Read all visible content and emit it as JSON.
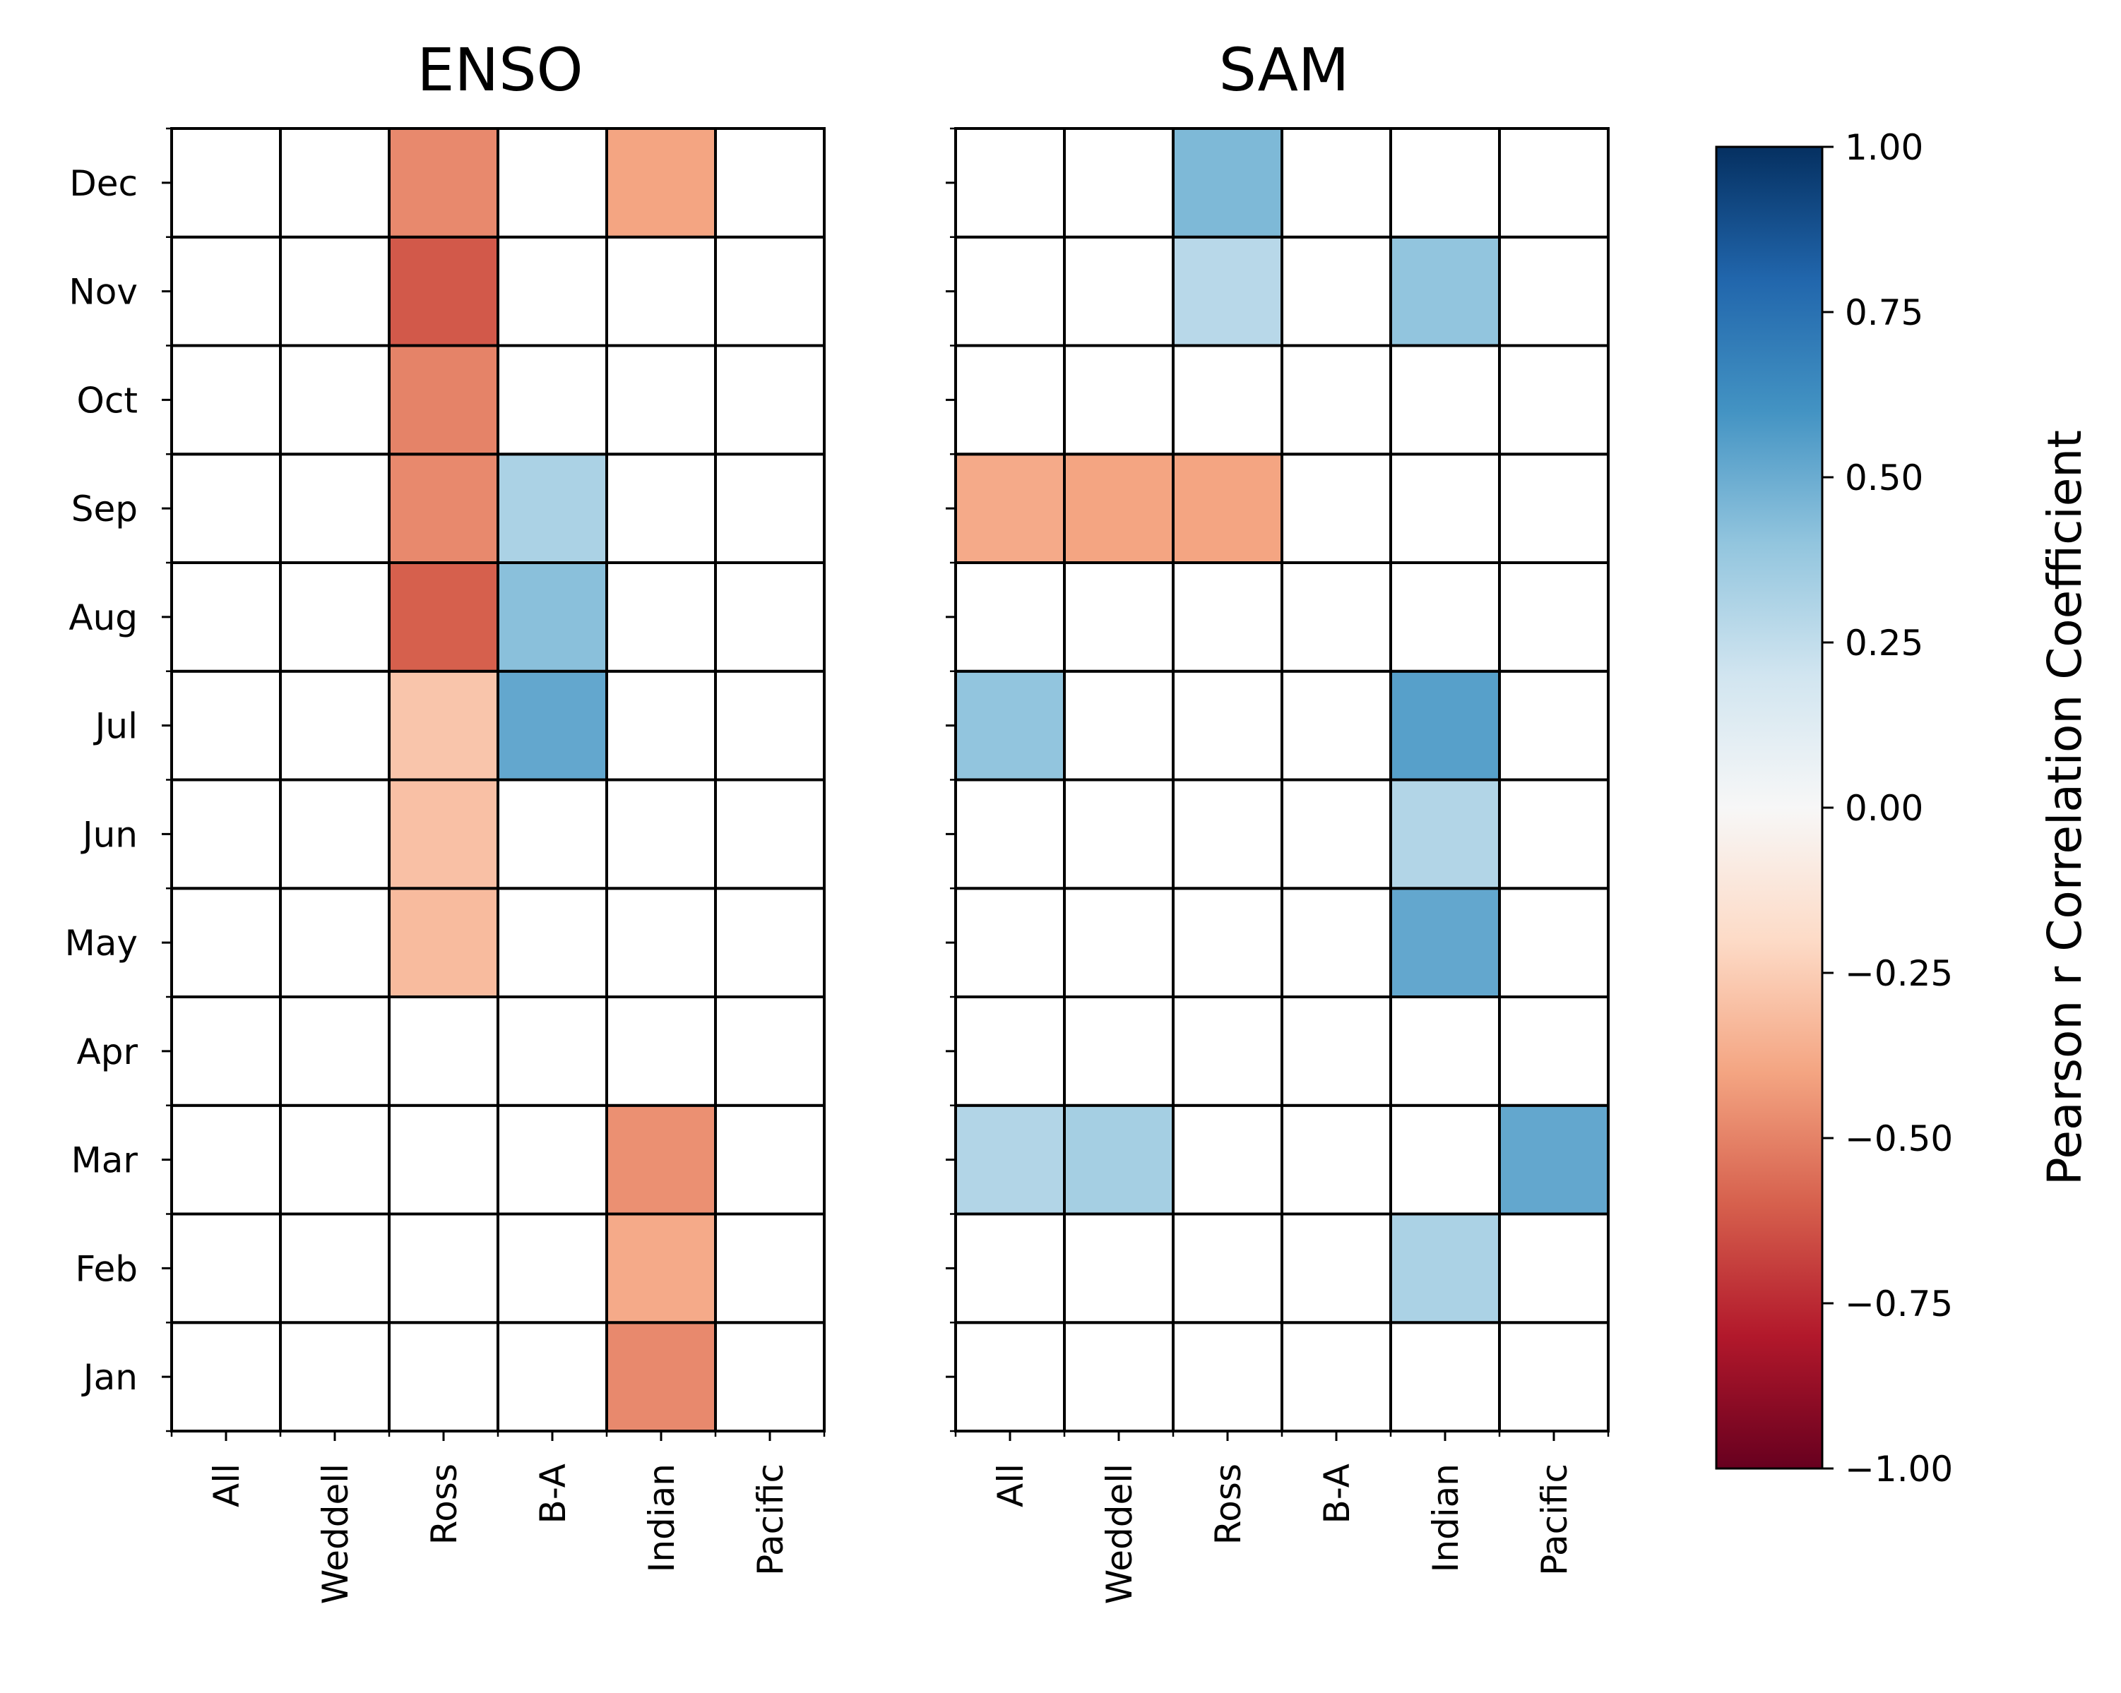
{
  "chart_data": [
    {
      "type": "heatmap",
      "title": "ENSO",
      "x_categories": [
        "All",
        "Weddell",
        "Ross",
        "B-A",
        "Indian",
        "Pacific"
      ],
      "y_categories": [
        "Jan",
        "Feb",
        "Mar",
        "Apr",
        "May",
        "Jun",
        "Jul",
        "Aug",
        "Sep",
        "Oct",
        "Nov",
        "Dec"
      ],
      "y_order": "bottom-to-top",
      "values": [
        [
          null,
          null,
          null,
          null,
          -0.48,
          null
        ],
        [
          null,
          null,
          null,
          null,
          -0.38,
          null
        ],
        [
          null,
          null,
          null,
          null,
          -0.46,
          null
        ],
        [
          null,
          null,
          null,
          null,
          null,
          null
        ],
        [
          null,
          null,
          -0.32,
          null,
          null,
          null
        ],
        [
          null,
          null,
          -0.3,
          null,
          null,
          null
        ],
        [
          null,
          null,
          -0.28,
          0.52,
          null,
          null
        ],
        [
          null,
          null,
          -0.6,
          0.42,
          null,
          null
        ],
        [
          null,
          null,
          -0.48,
          0.32,
          null,
          null
        ],
        [
          null,
          null,
          -0.5,
          null,
          null,
          null
        ],
        [
          null,
          null,
          -0.62,
          null,
          null,
          null
        ],
        [
          null,
          null,
          -0.48,
          null,
          -0.4,
          null
        ]
      ],
      "empty_color": "#ffffff"
    },
    {
      "type": "heatmap",
      "title": "SAM",
      "x_categories": [
        "All",
        "Weddell",
        "Ross",
        "B-A",
        "Indian",
        "Pacific"
      ],
      "y_categories": [
        "Jan",
        "Feb",
        "Mar",
        "Apr",
        "May",
        "Jun",
        "Jul",
        "Aug",
        "Sep",
        "Oct",
        "Nov",
        "Dec"
      ],
      "y_order": "bottom-to-top",
      "y_ticklabels_shown": false,
      "values": [
        [
          null,
          null,
          null,
          null,
          null,
          null
        ],
        [
          null,
          null,
          null,
          null,
          0.32,
          null
        ],
        [
          0.3,
          0.34,
          null,
          null,
          null,
          0.52
        ],
        [
          null,
          null,
          null,
          null,
          null,
          null
        ],
        [
          null,
          null,
          null,
          null,
          0.52,
          null
        ],
        [
          null,
          null,
          null,
          null,
          0.3,
          null
        ],
        [
          0.4,
          null,
          null,
          null,
          0.55,
          null
        ],
        [
          null,
          null,
          null,
          null,
          null,
          null
        ],
        [
          -0.38,
          -0.4,
          -0.4,
          null,
          null,
          null
        ],
        [
          null,
          null,
          null,
          null,
          null,
          null
        ],
        [
          null,
          null,
          0.28,
          null,
          0.4,
          null
        ],
        [
          null,
          null,
          0.45,
          null,
          null,
          null
        ]
      ],
      "empty_color": "#ffffff"
    }
  ],
  "colorbar": {
    "label": "Pearson r Correlation Coefficient",
    "colormap": "RdBu",
    "vmin": -1.0,
    "vmax": 1.0,
    "ticks": [
      1.0,
      0.75,
      0.5,
      0.25,
      0.0,
      -0.25,
      -0.5,
      -0.75,
      -1.0
    ],
    "tick_labels": [
      "1.00",
      "0.75",
      "0.50",
      "0.25",
      "0.00",
      "−0.25",
      "−0.50",
      "−0.75",
      "−1.00"
    ],
    "stops": [
      "#67001f",
      "#b2182b",
      "#d6604d",
      "#f4a582",
      "#fddbc7",
      "#f7f7f7",
      "#d1e5f0",
      "#92c5de",
      "#4393c3",
      "#2166ac",
      "#053061"
    ]
  }
}
